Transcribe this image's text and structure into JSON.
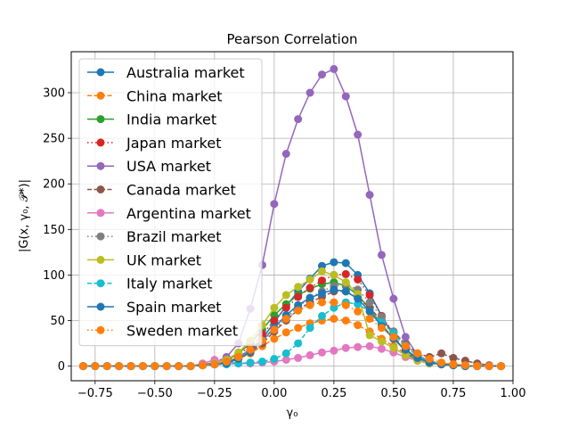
{
  "chart_data": {
    "type": "line",
    "title": "Pearson Correlation",
    "xlabel": "γ₀",
    "ylabel": "|G(x, γ₀, 𝒫*)|",
    "xlim": [
      -0.85,
      1.0
    ],
    "ylim": [
      -16,
      345
    ],
    "xticks": [
      -0.75,
      -0.5,
      -0.25,
      0.0,
      0.25,
      0.5,
      0.75,
      1.0
    ],
    "xtick_labels": [
      "−0.75",
      "−0.50",
      "−0.25",
      "0.00",
      "0.25",
      "0.50",
      "0.75",
      "1.00"
    ],
    "yticks": [
      0,
      50,
      100,
      150,
      200,
      250,
      300
    ],
    "ytick_labels": [
      "0",
      "50",
      "100",
      "150",
      "200",
      "250",
      "300"
    ],
    "grid": true,
    "legend_position": "top-left",
    "x": [
      -0.8,
      -0.75,
      -0.7,
      -0.65,
      -0.6,
      -0.55,
      -0.5,
      -0.45,
      -0.4,
      -0.35,
      -0.3,
      -0.25,
      -0.2,
      -0.15,
      -0.1,
      -0.05,
      0.0,
      0.05,
      0.1,
      0.15,
      0.2,
      0.25,
      0.3,
      0.35,
      0.4,
      0.45,
      0.5,
      0.55,
      0.6,
      0.65,
      0.7,
      0.75,
      0.8,
      0.85,
      0.9,
      0.95
    ],
    "series": [
      {
        "name": "Australia market",
        "color": "#1f77b4",
        "linestyle": "solid",
        "values": [
          0,
          0,
          0,
          0,
          0,
          0,
          0,
          0,
          0,
          0,
          1,
          2,
          4,
          10,
          18,
          30,
          48,
          66,
          82,
          96,
          110,
          114,
          113,
          100,
          80,
          55,
          33,
          15,
          6,
          3,
          2,
          1,
          0,
          0,
          0,
          0
        ]
      },
      {
        "name": "China market",
        "color": "#ff7f0e",
        "linestyle": "dashed",
        "values": [
          0,
          0,
          0,
          0,
          0,
          0,
          0,
          0,
          0,
          0,
          1,
          2,
          4,
          8,
          14,
          22,
          30,
          37,
          42,
          47,
          50,
          52,
          50,
          45,
          38,
          30,
          22,
          14,
          9,
          5,
          3,
          2,
          1,
          0,
          0,
          0
        ]
      },
      {
        "name": "India market",
        "color": "#2ca02c",
        "linestyle": "solid",
        "values": [
          0,
          0,
          0,
          0,
          0,
          0,
          0,
          0,
          0,
          0,
          1,
          3,
          6,
          14,
          25,
          40,
          56,
          68,
          78,
          85,
          90,
          92,
          88,
          78,
          63,
          46,
          30,
          17,
          9,
          4,
          2,
          1,
          0,
          0,
          0,
          0
        ]
      },
      {
        "name": "Japan market",
        "color": "#d62728",
        "linestyle": "dotted",
        "values": [
          0,
          0,
          0,
          0,
          0,
          0,
          0,
          0,
          0,
          0,
          1,
          2,
          5,
          12,
          22,
          35,
          50,
          64,
          76,
          86,
          94,
          100,
          101,
          95,
          78,
          55,
          32,
          16,
          8,
          4,
          2,
          1,
          0,
          0,
          0,
          0
        ]
      },
      {
        "name": "USA market",
        "color": "#9467bd",
        "linestyle": "solid",
        "values": [
          0,
          0,
          0,
          0,
          0,
          0,
          0,
          0,
          0,
          0,
          2,
          4,
          10,
          25,
          63,
          111,
          178,
          233,
          271,
          300,
          320,
          326,
          296,
          254,
          188,
          122,
          74,
          32,
          12,
          5,
          2,
          1,
          0,
          0,
          0,
          0
        ]
      },
      {
        "name": "Canada market",
        "color": "#8c564b",
        "linestyle": "dashed",
        "values": [
          0,
          0,
          0,
          0,
          0,
          0,
          0,
          0,
          0,
          0,
          1,
          2,
          4,
          8,
          15,
          25,
          38,
          50,
          62,
          70,
          76,
          82,
          82,
          75,
          64,
          50,
          38,
          24,
          14,
          10,
          14,
          9,
          6,
          3,
          1,
          0
        ]
      },
      {
        "name": "Argentina market",
        "color": "#e377c2",
        "linestyle": "solid",
        "values": [
          0,
          0,
          0,
          0,
          0,
          0,
          0,
          0,
          0,
          0,
          3,
          7,
          5,
          3,
          3,
          4,
          5,
          7,
          9,
          12,
          15,
          17,
          20,
          21,
          22,
          19,
          15,
          10,
          6,
          4,
          2,
          1,
          0,
          0,
          0,
          0
        ]
      },
      {
        "name": "Brazil market",
        "color": "#7f7f7f",
        "linestyle": "dotted",
        "values": [
          0,
          0,
          0,
          0,
          0,
          0,
          0,
          0,
          0,
          0,
          1,
          2,
          4,
          9,
          17,
          28,
          40,
          53,
          65,
          75,
          82,
          88,
          90,
          84,
          70,
          54,
          38,
          23,
          12,
          6,
          3,
          1,
          0,
          0,
          0,
          0
        ]
      },
      {
        "name": "UK market",
        "color": "#bcbd22",
        "linestyle": "solid",
        "values": [
          0,
          0,
          0,
          0,
          0,
          0,
          0,
          0,
          0,
          0,
          1,
          3,
          7,
          15,
          28,
          45,
          64,
          78,
          87,
          95,
          104,
          100,
          92,
          79,
          34,
          27,
          20,
          12,
          6,
          3,
          2,
          1,
          0,
          0,
          0,
          0
        ]
      },
      {
        "name": "Italy market",
        "color": "#17becf",
        "linestyle": "dashed",
        "values": [
          0,
          0,
          0,
          0,
          0,
          0,
          0,
          0,
          0,
          0,
          1,
          2,
          2,
          3,
          4,
          5,
          8,
          14,
          25,
          42,
          55,
          64,
          70,
          68,
          60,
          48,
          36,
          22,
          11,
          5,
          2,
          1,
          0,
          0,
          0,
          0
        ]
      },
      {
        "name": "Spain market",
        "color": "#1f77b4",
        "linestyle": "solid",
        "values": [
          0,
          0,
          0,
          0,
          0,
          0,
          0,
          0,
          0,
          0,
          1,
          2,
          3,
          8,
          16,
          28,
          42,
          56,
          67,
          75,
          80,
          84,
          82,
          74,
          60,
          44,
          30,
          18,
          9,
          4,
          2,
          1,
          0,
          0,
          0,
          0
        ]
      },
      {
        "name": "Sweden market",
        "color": "#ff7f0e",
        "linestyle": "dotted",
        "values": [
          0,
          0,
          0,
          0,
          0,
          0,
          0,
          0,
          0,
          0,
          1,
          2,
          5,
          10,
          18,
          28,
          40,
          52,
          61,
          67,
          70,
          70,
          67,
          60,
          52,
          42,
          32,
          22,
          14,
          8,
          4,
          2,
          1,
          0,
          0,
          0
        ]
      }
    ]
  }
}
